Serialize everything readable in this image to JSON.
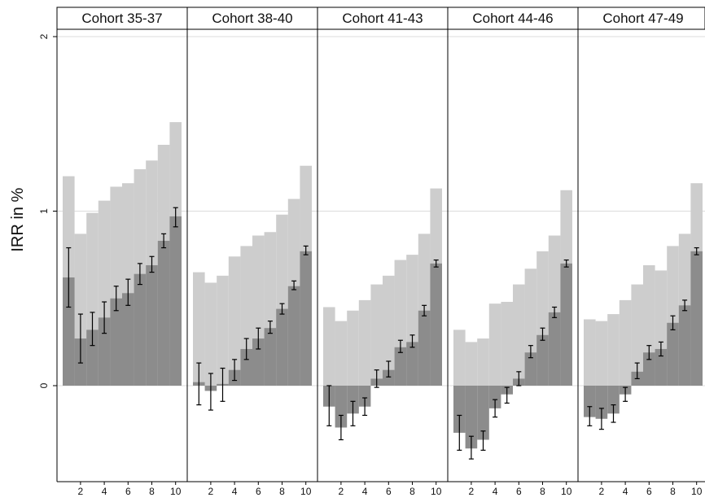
{
  "chart_data": {
    "type": "bar",
    "ylabel": "IRR in %",
    "ylim": [
      -0.55,
      2.15
    ],
    "yticks": [
      0,
      1,
      2
    ],
    "xticks": [
      2,
      4,
      6,
      8,
      10
    ],
    "deciles": [
      1,
      2,
      3,
      4,
      5,
      6,
      7,
      8,
      9,
      10
    ],
    "grid": true,
    "colors": {
      "light": "#cdcdcd",
      "dark": "#8c8c8c",
      "grid": "#dcdcdc",
      "frame": "#000000",
      "header_bg": "#ffffff"
    },
    "panels": [
      {
        "title": "Cohort 35-37",
        "light": [
          1.2,
          0.87,
          0.99,
          1.06,
          1.14,
          1.16,
          1.24,
          1.29,
          1.38,
          1.51
        ],
        "dark": [
          0.62,
          0.27,
          0.32,
          0.39,
          0.5,
          0.53,
          0.64,
          0.69,
          0.83,
          0.97
        ],
        "ci_low": [
          0.45,
          0.13,
          0.23,
          0.3,
          0.43,
          0.46,
          0.58,
          0.65,
          0.79,
          0.91
        ],
        "ci_high": [
          0.79,
          0.41,
          0.42,
          0.48,
          0.57,
          0.61,
          0.7,
          0.74,
          0.87,
          1.02
        ]
      },
      {
        "title": "Cohort 38-40",
        "light": [
          0.65,
          0.59,
          0.63,
          0.74,
          0.8,
          0.86,
          0.88,
          0.98,
          1.07,
          1.26
        ],
        "dark": [
          0.02,
          -0.03,
          0.01,
          0.09,
          0.21,
          0.27,
          0.33,
          0.44,
          0.57,
          0.77
        ],
        "ci_low": [
          -0.11,
          -0.14,
          -0.09,
          0.03,
          0.15,
          0.21,
          0.3,
          0.41,
          0.55,
          0.75
        ],
        "ci_high": [
          0.13,
          0.07,
          0.1,
          0.15,
          0.27,
          0.33,
          0.37,
          0.47,
          0.6,
          0.8
        ]
      },
      {
        "title": "Cohort 41-43",
        "light": [
          0.45,
          0.37,
          0.43,
          0.49,
          0.58,
          0.63,
          0.72,
          0.75,
          0.87,
          1.13
        ],
        "dark": [
          -0.12,
          -0.24,
          -0.16,
          -0.12,
          0.04,
          0.09,
          0.22,
          0.25,
          0.43,
          0.7
        ],
        "ci_low": [
          -0.23,
          -0.31,
          -0.23,
          -0.17,
          -0.01,
          0.05,
          0.19,
          0.22,
          0.4,
          0.68
        ],
        "ci_high": [
          0.0,
          -0.17,
          -0.09,
          -0.07,
          0.09,
          0.14,
          0.26,
          0.29,
          0.46,
          0.72
        ]
      },
      {
        "title": "Cohort 44-46",
        "light": [
          0.32,
          0.25,
          0.27,
          0.47,
          0.48,
          0.58,
          0.67,
          0.77,
          0.86,
          1.12
        ],
        "dark": [
          -0.27,
          -0.36,
          -0.31,
          -0.13,
          -0.05,
          0.04,
          0.19,
          0.29,
          0.42,
          0.7
        ],
        "ci_low": [
          -0.37,
          -0.42,
          -0.37,
          -0.18,
          -0.1,
          0.0,
          0.16,
          0.26,
          0.39,
          0.68
        ],
        "ci_high": [
          -0.17,
          -0.29,
          -0.26,
          -0.08,
          -0.01,
          0.08,
          0.23,
          0.33,
          0.45,
          0.72
        ]
      },
      {
        "title": "Cohort 47-49",
        "light": [
          0.38,
          0.37,
          0.41,
          0.49,
          0.58,
          0.69,
          0.66,
          0.8,
          0.87,
          1.16
        ],
        "dark": [
          -0.18,
          -0.19,
          -0.16,
          -0.05,
          0.08,
          0.19,
          0.21,
          0.36,
          0.46,
          0.77
        ],
        "ci_low": [
          -0.23,
          -0.25,
          -0.21,
          -0.09,
          0.04,
          0.15,
          0.17,
          0.32,
          0.43,
          0.75
        ],
        "ci_high": [
          -0.12,
          -0.13,
          -0.11,
          -0.01,
          0.13,
          0.23,
          0.25,
          0.4,
          0.49,
          0.79
        ]
      }
    ]
  }
}
